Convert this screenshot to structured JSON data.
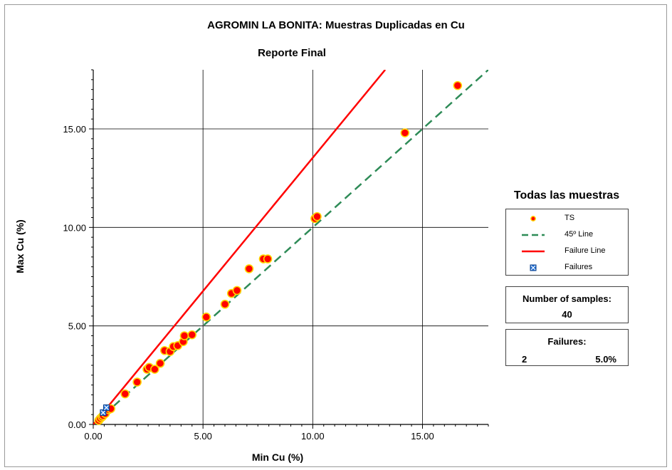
{
  "chart_data": {
    "type": "scatter",
    "title": "AGROMIN LA BONITA: Muestras Duplicadas en Cu",
    "subtitle": "Reporte Final",
    "xlabel": "Min Cu (%)",
    "ylabel": "Max Cu (%)",
    "xlim": [
      0,
      18
    ],
    "ylim": [
      0,
      18
    ],
    "x_ticks": [
      "0.00",
      "5.00",
      "10.00",
      "15.00"
    ],
    "y_ticks": [
      "0.00",
      "5.00",
      "10.00",
      "15.00"
    ],
    "grid": true,
    "legend_position": "right",
    "series": [
      {
        "name": "TS",
        "kind": "points",
        "color": "#ff0000",
        "edge_color": "#ffd700",
        "points": [
          [
            0.25,
            0.2
          ],
          [
            0.32,
            0.3
          ],
          [
            0.4,
            0.38
          ],
          [
            0.45,
            0.45
          ],
          [
            0.55,
            0.55
          ],
          [
            0.7,
            0.75
          ],
          [
            0.8,
            0.8
          ],
          [
            1.45,
            1.55
          ],
          [
            2.0,
            2.15
          ],
          [
            2.45,
            2.8
          ],
          [
            2.55,
            2.9
          ],
          [
            2.8,
            2.8
          ],
          [
            3.05,
            3.1
          ],
          [
            3.25,
            3.75
          ],
          [
            3.5,
            3.7
          ],
          [
            3.65,
            3.95
          ],
          [
            3.85,
            4.0
          ],
          [
            4.1,
            4.2
          ],
          [
            4.15,
            4.5
          ],
          [
            4.5,
            4.55
          ],
          [
            5.15,
            5.45
          ],
          [
            6.0,
            6.1
          ],
          [
            6.3,
            6.65
          ],
          [
            6.55,
            6.8
          ],
          [
            7.1,
            7.9
          ],
          [
            7.75,
            8.4
          ],
          [
            7.95,
            8.4
          ],
          [
            10.1,
            10.45
          ],
          [
            10.2,
            10.55
          ],
          [
            14.2,
            14.8
          ],
          [
            16.6,
            17.2
          ]
        ]
      },
      {
        "name": "45º Line",
        "kind": "line",
        "color": "#2e8b57",
        "dash": true,
        "points": [
          [
            0,
            0
          ],
          [
            18,
            18
          ]
        ]
      },
      {
        "name": "Failure Line",
        "kind": "line",
        "color": "#ff0000",
        "dash": false,
        "points": [
          [
            0,
            0
          ],
          [
            13.3,
            18
          ]
        ]
      },
      {
        "name": "Failures",
        "kind": "points",
        "color": "#1e6fd6",
        "points": [
          [
            0.45,
            0.6
          ],
          [
            0.6,
            0.85
          ]
        ]
      }
    ]
  },
  "legend": {
    "title": "Todas las muestras",
    "items": [
      "TS",
      "45º Line",
      "Failure Line",
      "Failures"
    ]
  },
  "stats": {
    "samples_label": "Number of samples:",
    "samples_value": "40",
    "failures_label": "Failures:",
    "failures_count": "2",
    "failures_pct": "5.0%"
  }
}
